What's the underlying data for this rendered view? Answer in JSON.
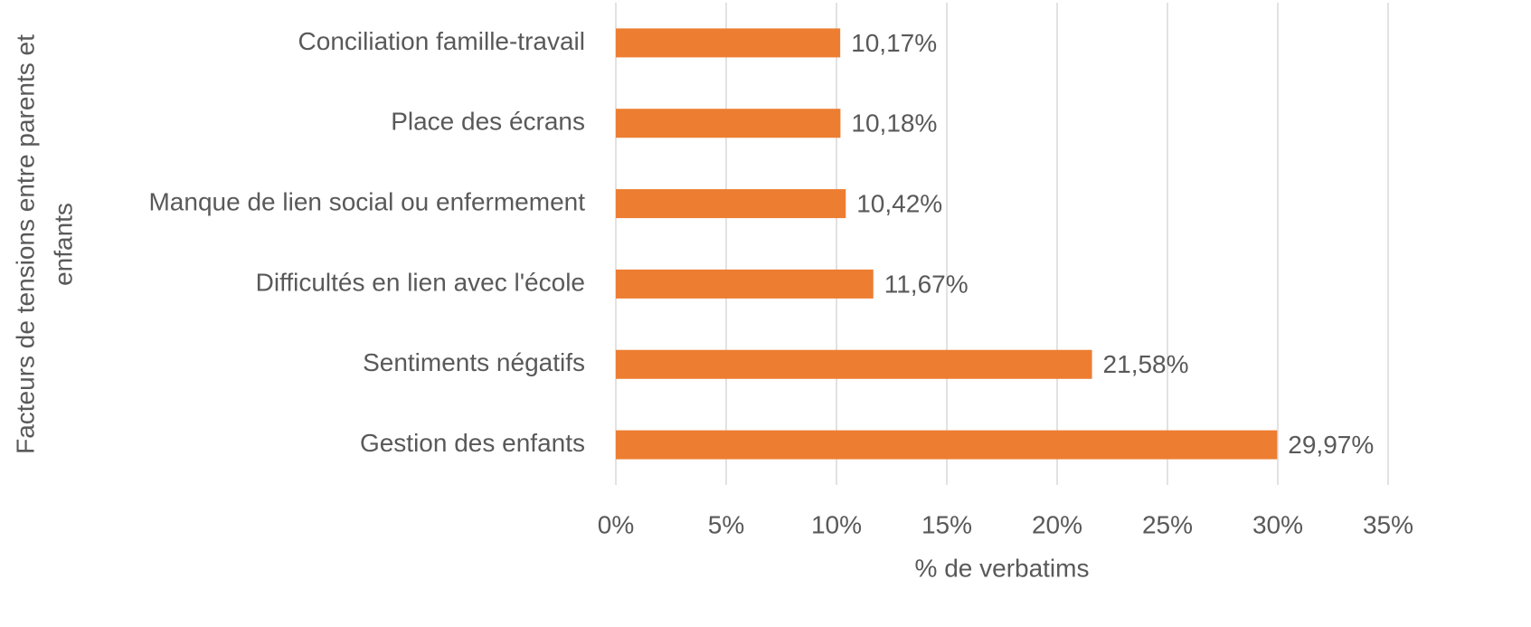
{
  "chart_data": {
    "type": "barh",
    "categories": [
      "Conciliation famille-travail",
      "Place des écrans",
      "Manque de lien social ou enfermement",
      "Difficultés en lien avec l'école",
      "Sentiments négatifs",
      "Gestion des enfants"
    ],
    "values": [
      10.17,
      10.18,
      10.42,
      11.67,
      21.58,
      29.97
    ],
    "value_labels": [
      "10,17%",
      "10,18%",
      "10,42%",
      "11,67%",
      "21,58%",
      "29,97%"
    ],
    "color": "#ed7d31",
    "xlabel": "% de verbatims",
    "ylabel": [
      "Facteurs de tensions entre parents et",
      "enfants"
    ],
    "xlim": [
      0,
      35
    ],
    "xticks": [
      {
        "value": 0,
        "label": "0%"
      },
      {
        "value": 5,
        "label": "5%"
      },
      {
        "value": 10,
        "label": "10%"
      },
      {
        "value": 15,
        "label": "15%"
      },
      {
        "value": 20,
        "label": "20%"
      },
      {
        "value": 25,
        "label": "25%"
      },
      {
        "value": 30,
        "label": "30%"
      },
      {
        "value": 35,
        "label": "35%"
      }
    ],
    "grid": true
  }
}
